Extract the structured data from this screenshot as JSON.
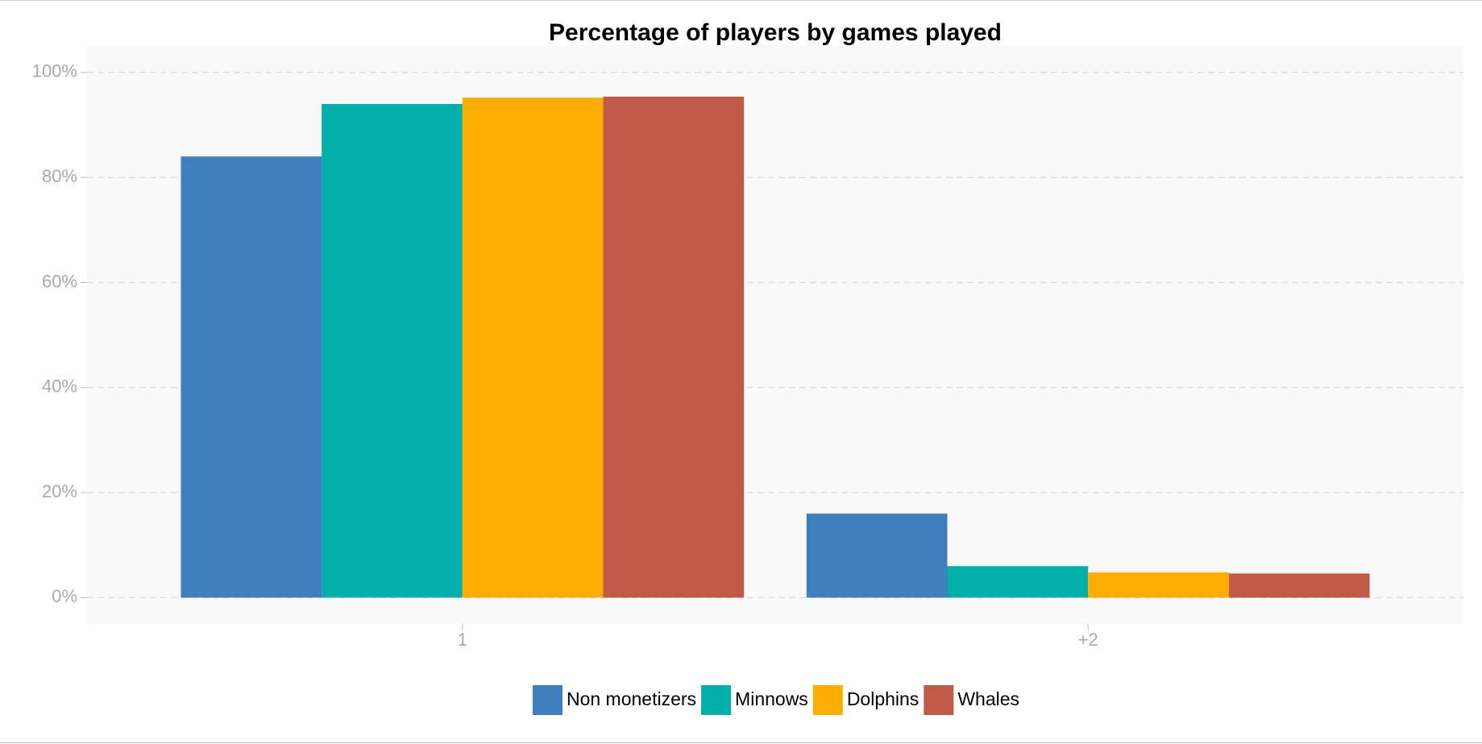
{
  "chart_data": {
    "type": "bar",
    "title": "Percentage of players by games played",
    "categories": [
      "1",
      "+2"
    ],
    "series": [
      {
        "name": "Non monetizers",
        "color": "#3f7fbd",
        "values": [
          84,
          16
        ]
      },
      {
        "name": "Minnows",
        "color": "#02aea9",
        "values": [
          94,
          6
        ]
      },
      {
        "name": "Dolphins",
        "color": "#fdac02",
        "values": [
          95.2,
          4.8
        ]
      },
      {
        "name": "Whales",
        "color": "#c25a48",
        "values": [
          95.4,
          4.6
        ]
      }
    ],
    "ylim": [
      -5,
      105.2
    ],
    "yticks": [
      {
        "value": 0,
        "label": "0%"
      },
      {
        "value": 20,
        "label": "20%"
      },
      {
        "value": 40,
        "label": "40%"
      },
      {
        "value": 60,
        "label": "60%"
      },
      {
        "value": 80,
        "label": "80%"
      },
      {
        "value": 100,
        "label": "100%"
      }
    ],
    "grid": true,
    "legend": "bottom"
  }
}
